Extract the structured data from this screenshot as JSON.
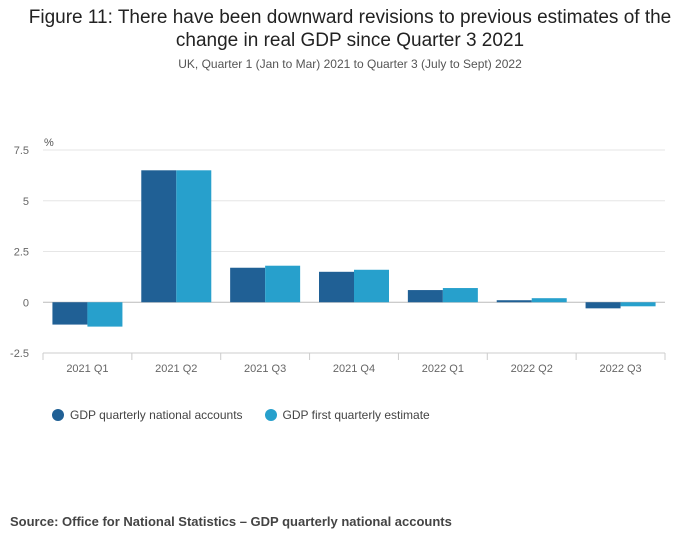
{
  "title": "Figure 11: There have been downward revisions to previous estimates of the change in real GDP since Quarter 3 2021",
  "subtitle": "UK, Quarter 1 (Jan to Mar) 2021 to Quarter 3 (July to Sept) 2022",
  "source": "Source: Office for National Statistics – GDP quarterly national accounts",
  "chart_data": {
    "type": "bar",
    "categories": [
      "2021 Q1",
      "2021 Q2",
      "2021 Q3",
      "2021 Q4",
      "2022 Q1",
      "2022 Q2",
      "2022 Q3"
    ],
    "series": [
      {
        "name": "GDP quarterly national accounts",
        "color": "#206095",
        "values": [
          -1.1,
          6.5,
          1.7,
          1.5,
          0.6,
          0.1,
          -0.3
        ]
      },
      {
        "name": "GDP first quarterly estimate",
        "color": "#27a0cc",
        "values": [
          -1.2,
          6.5,
          1.8,
          1.6,
          0.7,
          0.2,
          -0.2
        ]
      }
    ],
    "ylabel": "%",
    "ylim": [
      -2.5,
      7.5
    ],
    "yticks": [
      7.5,
      5,
      2.5,
      0,
      -2.5
    ],
    "ytick_labels": [
      "7.5",
      "5",
      "2.5",
      "0",
      "-2.5"
    ],
    "grid": true,
    "legend": "bottom-left"
  }
}
